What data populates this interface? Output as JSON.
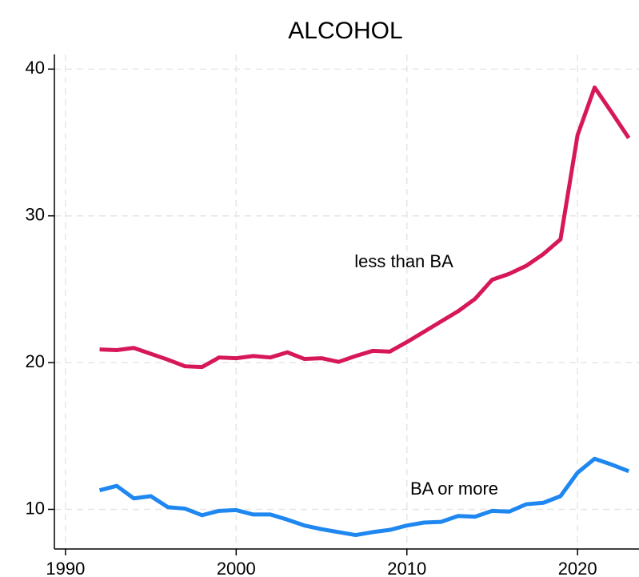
{
  "chart_data": {
    "type": "line",
    "title": "ALCOHOL",
    "x": [
      1992,
      1993,
      1994,
      1995,
      1996,
      1997,
      1998,
      1999,
      2000,
      2001,
      2002,
      2003,
      2004,
      2005,
      2006,
      2007,
      2008,
      2009,
      2010,
      2011,
      2012,
      2013,
      2014,
      2015,
      2016,
      2017,
      2018,
      2019,
      2020,
      2021,
      2022,
      2023
    ],
    "series": [
      {
        "name": "less than BA",
        "color": "#d6185a",
        "values": [
          20.9,
          20.85,
          21.0,
          20.6,
          20.2,
          19.75,
          19.7,
          20.35,
          20.3,
          20.45,
          20.35,
          20.7,
          20.25,
          20.3,
          20.05,
          20.45,
          20.8,
          20.75,
          21.4,
          22.1,
          22.8,
          23.5,
          24.35,
          25.65,
          26.05,
          26.6,
          27.4,
          28.4,
          35.5,
          38.75,
          37.05,
          35.3
        ]
      },
      {
        "name": "BA or more",
        "color": "#1f87f0",
        "values": [
          11.3,
          11.6,
          10.75,
          10.9,
          10.15,
          10.05,
          9.6,
          9.9,
          9.95,
          9.65,
          9.65,
          9.3,
          8.9,
          8.65,
          8.45,
          8.25,
          8.45,
          8.6,
          8.9,
          9.1,
          9.15,
          9.55,
          9.5,
          9.9,
          9.85,
          10.35,
          10.45,
          10.9,
          12.5,
          13.45,
          13.05,
          12.6
        ]
      }
    ],
    "xlim": [
      1989.35,
      2023.6
    ],
    "ylim": [
      7.3,
      41
    ],
    "xticks": [
      1990,
      2000,
      2010,
      2020
    ],
    "yticks": [
      10,
      20,
      30,
      40
    ],
    "grid": true
  }
}
